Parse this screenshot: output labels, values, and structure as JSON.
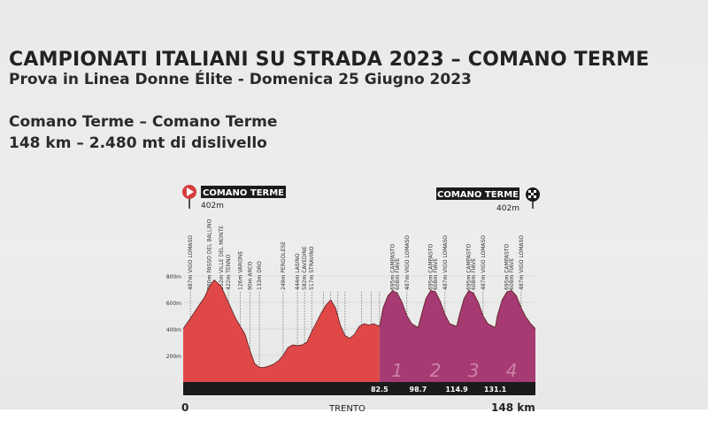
{
  "header": {
    "title": "CAMPIONATI ITALIANI SU STRADA 2023 – COMANO TERME",
    "subtitle": "Prova in Linea Donne Élite - Domenica 25 Giugno 2023",
    "route": "Comano Terme – Comano Terme",
    "distance": "148 km – 2.480 mt di dislivello"
  },
  "colors": {
    "red": "#e04848",
    "purple": "#a63a72",
    "band": "#1b1b1b",
    "flag_red": "#d63c3c"
  },
  "chart_data": {
    "type": "area",
    "title": "",
    "xlabel": "",
    "ylabel": "",
    "x_unit": "km",
    "y_unit": "m",
    "xlim": [
      0,
      148
    ],
    "ylim": [
      0,
      900
    ],
    "y_ticks": [
      "800m",
      "600m",
      "400m",
      "200m"
    ],
    "y_tick_values": [
      800,
      600,
      400,
      200
    ],
    "start": {
      "name": "COMANO TERME",
      "altitude": "402m"
    },
    "finish": {
      "name": "COMANO TERME",
      "altitude": "402m"
    },
    "bottom_labels": {
      "start_km": "0",
      "middle": "TRENTO",
      "finish_km": "148 km"
    },
    "series": [
      {
        "name": "",
        "color_segments": [
          {
            "from": 0,
            "to": 82.5,
            "color": "red"
          },
          {
            "from": 82.5,
            "to": 148,
            "color": "purple"
          }
        ],
        "x": [
          0,
          3,
          6,
          9,
          11,
          13,
          16,
          19,
          22,
          24,
          26,
          28,
          30,
          32,
          34,
          36,
          38,
          40,
          42,
          44,
          46,
          48,
          50,
          52,
          54,
          56,
          58,
          60,
          62,
          64,
          66,
          68,
          70,
          72,
          74,
          76,
          78,
          80,
          82.5,
          84,
          86,
          88,
          90,
          92,
          94,
          96,
          98.7,
          100,
          102,
          104,
          106,
          108,
          110,
          112,
          114.9,
          116,
          118,
          120,
          122,
          124,
          126,
          128,
          131.1,
          132,
          134,
          136,
          138,
          140,
          142,
          144,
          146,
          148
        ],
        "y": [
          402,
          480,
          560,
          640,
          720,
          770,
          720,
          600,
          480,
          420,
          360,
          240,
          140,
          110,
          110,
          120,
          135,
          160,
          200,
          260,
          280,
          275,
          280,
          300,
          380,
          450,
          520,
          580,
          620,
          560,
          430,
          350,
          330,
          360,
          420,
          440,
          430,
          440,
          420,
          560,
          650,
          690,
          670,
          600,
          500,
          440,
          410,
          500,
          630,
          690,
          680,
          610,
          510,
          440,
          420,
          500,
          630,
          690,
          670,
          600,
          500,
          440,
          410,
          500,
          620,
          680,
          690,
          650,
          560,
          490,
          440,
          402
        ]
      }
    ],
    "annotations": [
      {
        "label": "487m VIGO LOMASO",
        "x": 3
      },
      {
        "label": "760m PASSO DEL BALLINO",
        "x": 11
      },
      {
        "label": "552m VILLE DEL MONTE",
        "x": 16
      },
      {
        "label": "422m TENNO",
        "x": 19
      },
      {
        "label": "126m VARONE",
        "x": 24
      },
      {
        "label": "90m ARCO",
        "x": 28
      },
      {
        "label": "133m DRO",
        "x": 32
      },
      {
        "label": "249m PERGOLESE",
        "x": 42
      },
      {
        "label": "444m LASINO",
        "x": 48
      },
      {
        "label": "582m CAVEDINE",
        "x": 51
      },
      {
        "label": "517m STRAVINO",
        "x": 54
      },
      {
        "label": "",
        "x": 59
      },
      {
        "label": "",
        "x": 62
      },
      {
        "label": "",
        "x": 65
      },
      {
        "label": "",
        "x": 68
      },
      {
        "label": "",
        "x": 75
      },
      {
        "label": "",
        "x": 79
      },
      {
        "label": "",
        "x": 82.5
      },
      {
        "label": "695m CAMPASTO",
        "x": 88
      },
      {
        "label": "608m FIAVÈ",
        "x": 90
      },
      {
        "label": "487m VIGO LOMASO",
        "x": 94
      },
      {
        "label": "695m CAMPASTO",
        "x": 104
      },
      {
        "label": "608m FIAVÈ",
        "x": 106
      },
      {
        "label": "487m VIGO LOMASO",
        "x": 110
      },
      {
        "label": "695m CAMPASTO",
        "x": 120
      },
      {
        "label": "608m FIAVÈ",
        "x": 122
      },
      {
        "label": "487m VIGO LOMASO",
        "x": 126
      },
      {
        "label": "695m CAMPASTO",
        "x": 136
      },
      {
        "label": "608m FIAVÈ",
        "x": 138
      },
      {
        "label": "487m VIGO LOMASO",
        "x": 142
      }
    ],
    "km_markers": [
      {
        "label": "82.5",
        "x": 82.5
      },
      {
        "label": "98.7",
        "x": 98.7
      },
      {
        "label": "114.9",
        "x": 114.9
      },
      {
        "label": "131.1",
        "x": 131.1
      }
    ],
    "lap_numbers": [
      {
        "label": "1",
        "x": 90
      },
      {
        "label": "2",
        "x": 106
      },
      {
        "label": "3",
        "x": 122
      },
      {
        "label": "4",
        "x": 138
      }
    ]
  }
}
